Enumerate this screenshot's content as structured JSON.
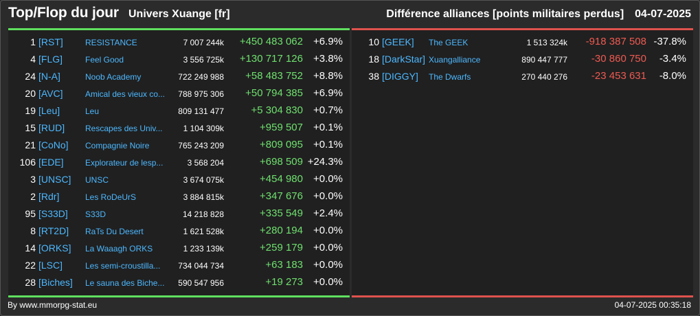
{
  "header": {
    "title": "Top/Flop du jour",
    "universe": "Univers Xuange [fr]",
    "subtitle": "Différence alliances [points militaires perdus]",
    "date": "04-07-2025"
  },
  "colors": {
    "positive": "#6fe06f",
    "negative": "#ee5a52",
    "link": "#4db8ff",
    "top_bar": "#5fe05f",
    "flop_bar": "#e0524d"
  },
  "top": [
    {
      "rank": "1",
      "tag": "[RST]",
      "name": "RESISTANCE",
      "points": "7 007 244k",
      "diff": "+450 483 062",
      "pct": "+6.9%"
    },
    {
      "rank": "4",
      "tag": "[FLG]",
      "name": "Feel Good",
      "points": "3 556 725k",
      "diff": "+130 717 126",
      "pct": "+3.8%"
    },
    {
      "rank": "24",
      "tag": "[N-A]",
      "name": "Noob Academy",
      "points": "722 249 988",
      "diff": "+58 483 752",
      "pct": "+8.8%"
    },
    {
      "rank": "20",
      "tag": "[AVC]",
      "name": "Amical des vieux co...",
      "points": "788 975 306",
      "diff": "+50 794 385",
      "pct": "+6.9%"
    },
    {
      "rank": "19",
      "tag": "[Leu]",
      "name": "Leu",
      "points": "809 131 477",
      "diff": "+5 304 830",
      "pct": "+0.7%"
    },
    {
      "rank": "15",
      "tag": "[RUD]",
      "name": "Rescapes des Univ...",
      "points": "1 104 309k",
      "diff": "+959 507",
      "pct": "+0.1%"
    },
    {
      "rank": "21",
      "tag": "[CoNo]",
      "name": "Compagnie Noire",
      "points": "765 243 209",
      "diff": "+809 095",
      "pct": "+0.1%"
    },
    {
      "rank": "106",
      "tag": "[EDE]",
      "name": "Explorateur de lesp...",
      "points": "3 568 204",
      "diff": "+698 509",
      "pct": "+24.3%"
    },
    {
      "rank": "3",
      "tag": "[UNSC]",
      "name": "UNSC",
      "points": "3 674 075k",
      "diff": "+454 980",
      "pct": "+0.0%"
    },
    {
      "rank": "2",
      "tag": "[Rdr]",
      "name": "Les RoDeUrS",
      "points": "3 884 815k",
      "diff": "+347 676",
      "pct": "+0.0%"
    },
    {
      "rank": "95",
      "tag": "[S33D]",
      "name": "S33D",
      "points": "14 218 828",
      "diff": "+335 549",
      "pct": "+2.4%"
    },
    {
      "rank": "8",
      "tag": "[RT2D]",
      "name": "RaTs Du Desert",
      "points": "1 621 528k",
      "diff": "+280 194",
      "pct": "+0.0%"
    },
    {
      "rank": "14",
      "tag": "[ORKS]",
      "name": "La Waaagh ORKS",
      "points": "1 233 139k",
      "diff": "+259 179",
      "pct": "+0.0%"
    },
    {
      "rank": "22",
      "tag": "[LSC]",
      "name": "Les semi-croustilla...",
      "points": "734 044 734",
      "diff": "+63 183",
      "pct": "+0.0%"
    },
    {
      "rank": "28",
      "tag": "[Biches]",
      "name": "Le sauna des Biche...",
      "points": "590 547 956",
      "diff": "+19 273",
      "pct": "+0.0%"
    }
  ],
  "flop": [
    {
      "rank": "10",
      "tag": "[GEEK]",
      "name": "The GEEK",
      "points": "1 513 324k",
      "diff": "-918 387 508",
      "pct": "-37.8%"
    },
    {
      "rank": "18",
      "tag": "[DarkStar]",
      "name": "Xuangalliance",
      "points": "890 447 777",
      "diff": "-30 860 750",
      "pct": "-3.4%"
    },
    {
      "rank": "38",
      "tag": "[DIGGY]",
      "name": "The Dwarfs",
      "points": "270 440 276",
      "diff": "-23 453 631",
      "pct": "-8.0%"
    }
  ],
  "footer": {
    "source": "By www.mmorpg-stat.eu",
    "timestamp": "04-07-2025 00:35:18"
  }
}
